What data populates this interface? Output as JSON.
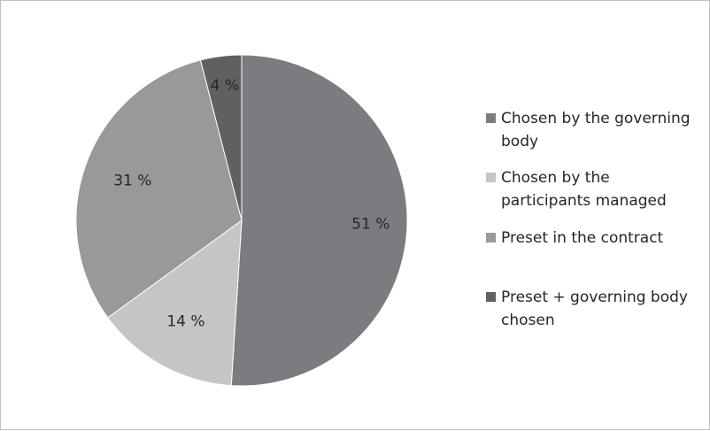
{
  "chart_data": {
    "type": "pie",
    "title": "",
    "categories": [
      "Chosen by the governing body",
      "Chosen by the participants managed",
      "Preset in the contract",
      "Preset + governing body chosen"
    ],
    "values": [
      51,
      14,
      31,
      4
    ],
    "value_labels": [
      "51 %",
      "14 %",
      "31 %",
      "4 %"
    ],
    "colors": [
      "#7b7c7f",
      "#c4c5c7",
      "#98999b",
      "#5f6062"
    ],
    "legend_position": "right",
    "start_angle": "12 o'clock, clockwise"
  }
}
